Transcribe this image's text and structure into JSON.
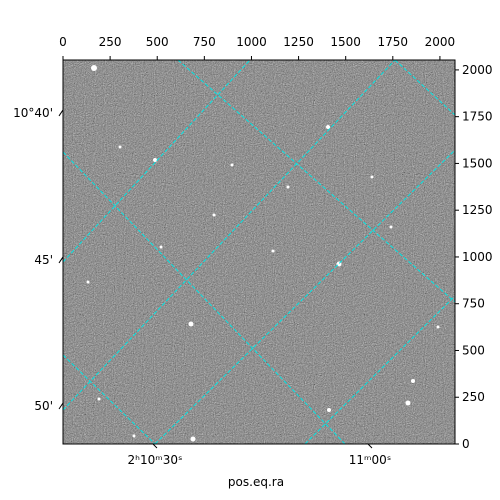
{
  "chart_data": {
    "type": "image",
    "xlabel": "pos.eq.ra",
    "xlim": [
      0,
      2080
    ],
    "ylim": [
      0,
      2053
    ],
    "xticks": [
      0,
      250,
      500,
      750,
      1000,
      1250,
      1500,
      1750,
      2000
    ],
    "yticks": [
      0,
      250,
      500,
      750,
      1000,
      1250,
      1500,
      1750,
      2000
    ],
    "world_xticks": [
      {
        "value": 488,
        "label": "2ʰ10ᵐ30ˢ"
      },
      {
        "value": 1629,
        "label": "11ᵐ00ˢ"
      }
    ],
    "world_yticks": [
      {
        "value": 1770,
        "label": "10°40'"
      },
      {
        "value": 984,
        "label": "45'"
      },
      {
        "value": 203,
        "label": "50'"
      }
    ],
    "grid_color": "#00e5e5"
  }
}
